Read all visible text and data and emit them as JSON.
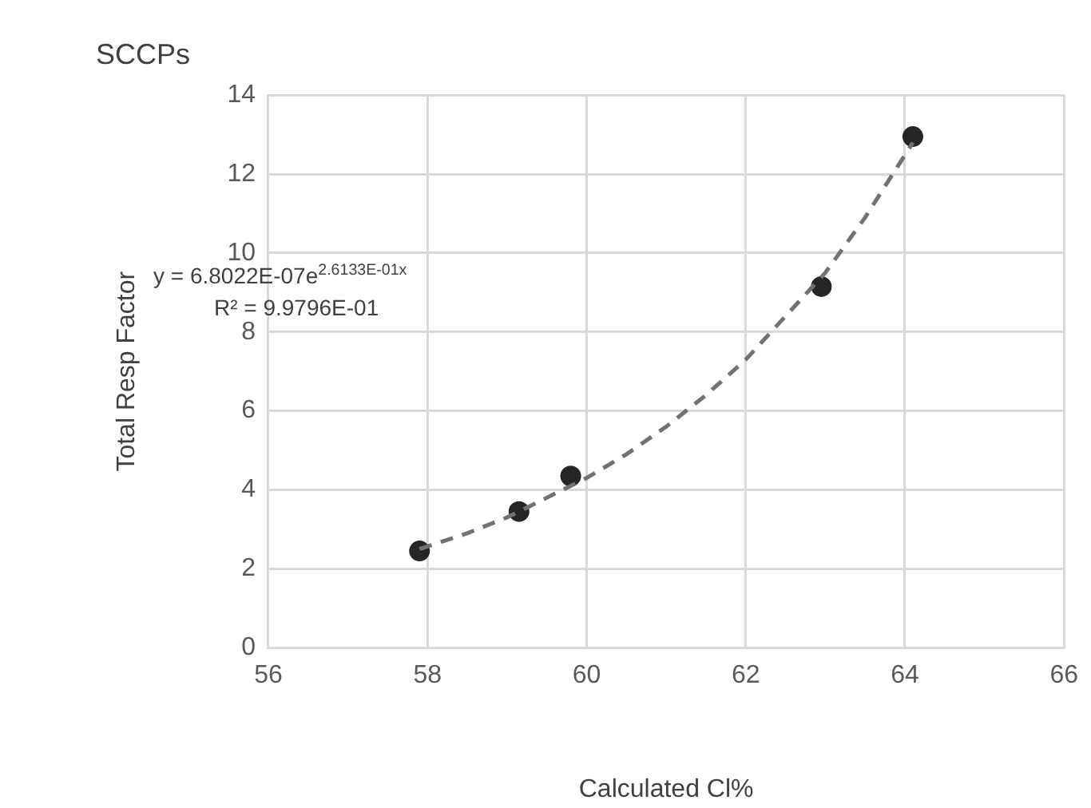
{
  "chart_data": {
    "type": "scatter",
    "title": "SCCPs",
    "xlabel": "Calculated Cl%",
    "ylabel": "Total Resp Factor",
    "annotations": [
      "y = 6.8022E-07e$^{2.6133E-01x}$",
      "R² = 9.9796E-01"
    ],
    "xlim": [
      56,
      66
    ],
    "xticks": [
      56,
      58,
      60,
      62,
      64,
      66
    ],
    "ylim": [
      0,
      14
    ],
    "yticks": [
      0,
      2,
      4,
      6,
      8,
      10,
      12,
      14
    ],
    "grid": true,
    "legend": false,
    "series": [
      {
        "type": "line",
        "color": "#767171",
        "line_style": "dashed",
        "marker": "none",
        "x": [
          57.9,
          58.5,
          59,
          59.5,
          60,
          60.5,
          61,
          61.5,
          62,
          62.5,
          63,
          63.5,
          64.1
        ],
        "values": [
          2.5,
          2.9,
          3.3,
          3.8,
          4.3,
          4.9,
          5.6,
          6.4,
          7.3,
          8.4,
          9.5,
          10.9,
          12.8
        ]
      },
      {
        "color": "#262626",
        "marker": "circle",
        "x": [
          57.9,
          59.15,
          59.8,
          62.95,
          64.1
        ],
        "values": [
          2.45,
          3.45,
          4.35,
          9.15,
          12.95
        ]
      }
    ]
  }
}
